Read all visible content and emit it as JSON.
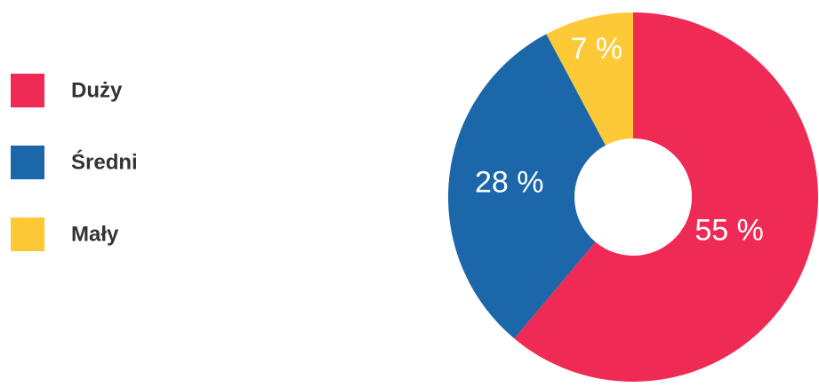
{
  "chart_data": {
    "type": "pie",
    "categories": [
      "Duży",
      "Średni",
      "Mały"
    ],
    "values": [
      55,
      28,
      7
    ],
    "value_labels": [
      "55 %",
      "28 %",
      "7 %"
    ],
    "colors": [
      "#ee2a55",
      "#1b67aa",
      "#fdc936"
    ],
    "legend": "left"
  }
}
